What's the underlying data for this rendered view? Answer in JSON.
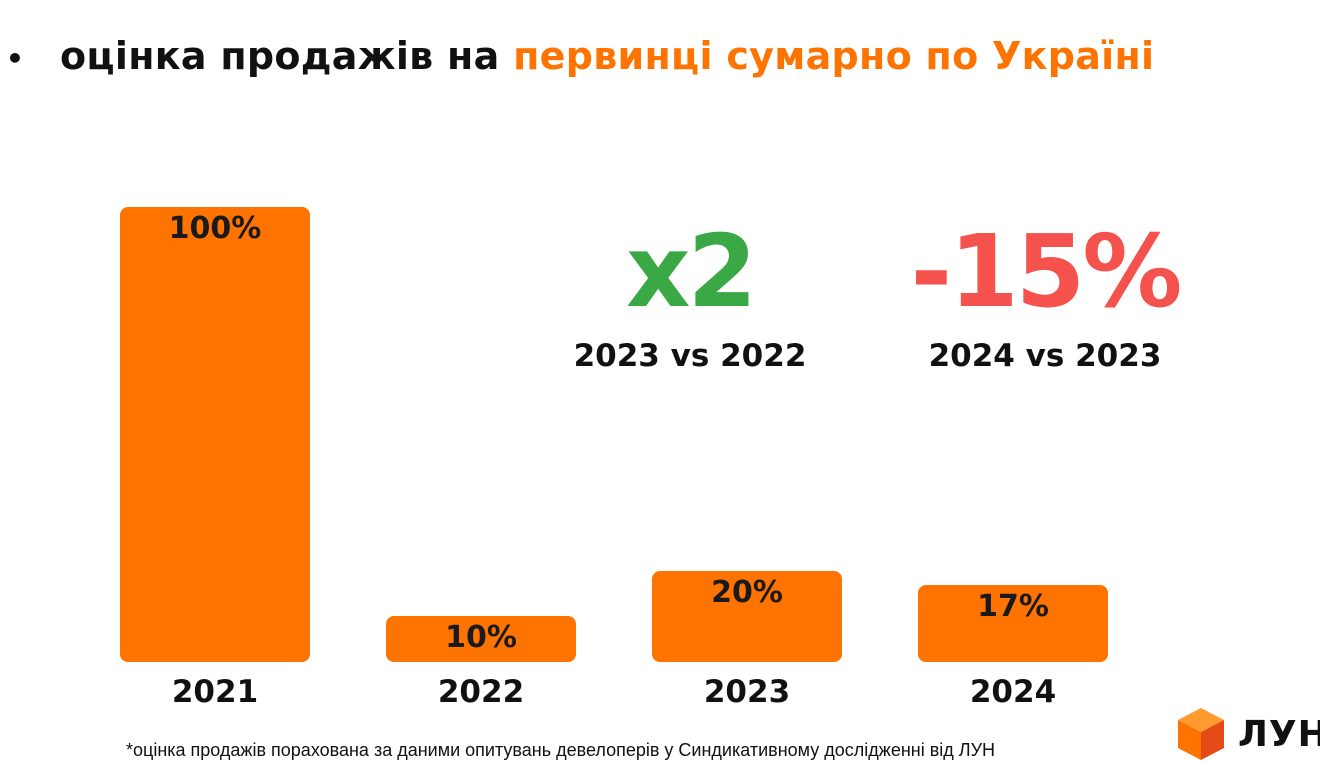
{
  "title": {
    "bullet": "•",
    "text_plain": "оцінка продажів на ",
    "text_accent": "первинці сумарно по Україні"
  },
  "colors": {
    "bar": "#ff7300",
    "accent": "#ff7300",
    "increase": "#3aa845",
    "decrease": "#f5524d"
  },
  "callouts": [
    {
      "value": "x2",
      "caption": "2023 vs 2022",
      "color": "#3aa845"
    },
    {
      "value": "-15%",
      "caption": "2024 vs 2023",
      "color": "#f5524d"
    }
  ],
  "chart_data": {
    "type": "bar",
    "categories": [
      "2021",
      "2022",
      "2023",
      "2024"
    ],
    "values": [
      100,
      10,
      20,
      17
    ],
    "data_labels": [
      "100%",
      "10%",
      "20%",
      "17%"
    ],
    "title": "",
    "xlabel": "",
    "ylabel": "",
    "ylim": [
      0,
      100
    ],
    "grid": false,
    "legend": "none"
  },
  "footnote": "*оцінка продажів порахована за даними опитувань девелоперів у  Синдикативному дослідженні від ЛУН",
  "logo": {
    "text": "ЛУН",
    "icon": "orange-cube-icon"
  }
}
